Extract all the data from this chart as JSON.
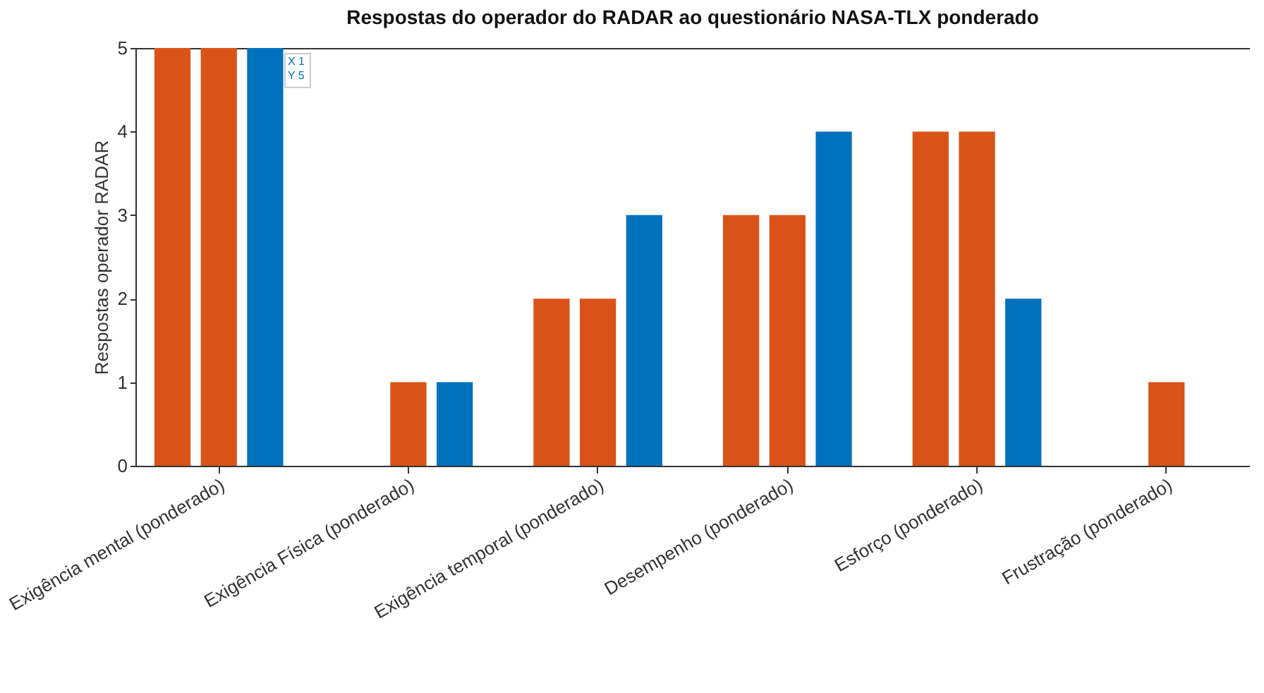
{
  "chart_data": {
    "type": "bar",
    "title": "Respostas do operador do RADAR ao questionário NASA-TLX ponderado",
    "ylabel": "Respostas operador RADAR",
    "categories": [
      "Exigência mental (ponderado)",
      "Exigência Física (ponderado)",
      "Exigência temporal (ponderado)",
      "Desempenho (ponderado)",
      "Esforço (ponderado)",
      "Frustração (ponderado)"
    ],
    "series": [
      {
        "color": "#d95319",
        "values": [
          5,
          0,
          2,
          3,
          4,
          0
        ]
      },
      {
        "color": "#d95319",
        "values": [
          5,
          1,
          2,
          3,
          4,
          1
        ]
      },
      {
        "color": "#0072bd",
        "values": [
          5,
          1,
          3,
          4,
          2,
          0
        ]
      }
    ],
    "ylim": [
      0,
      5
    ],
    "yticks": [
      0,
      1,
      2,
      3,
      4,
      5
    ],
    "grid": false,
    "legend": false,
    "annotations": [
      "X 1",
      "Y 5"
    ]
  }
}
